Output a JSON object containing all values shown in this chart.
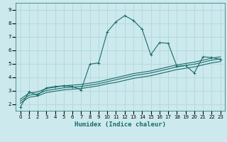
{
  "xlabel": "Humidex (Indice chaleur)",
  "bg_color": "#cce9ed",
  "grid_color": "#aad4d9",
  "line_color": "#1a6b6b",
  "xlim": [
    -0.5,
    23.5
  ],
  "ylim": [
    1.5,
    9.5
  ],
  "xticks": [
    0,
    1,
    2,
    3,
    4,
    5,
    6,
    7,
    8,
    9,
    10,
    11,
    12,
    13,
    14,
    15,
    16,
    17,
    18,
    19,
    20,
    21,
    22,
    23
  ],
  "yticks": [
    2,
    3,
    4,
    5,
    6,
    7,
    8,
    9
  ],
  "line1_x": [
    0,
    1,
    2,
    3,
    4,
    5,
    6,
    7,
    8,
    9,
    10,
    11,
    12,
    13,
    14,
    15,
    16,
    17,
    18,
    19,
    20,
    21,
    22,
    23
  ],
  "line1_y": [
    1.75,
    2.9,
    2.65,
    3.2,
    3.3,
    3.35,
    3.3,
    3.05,
    4.95,
    5.05,
    7.35,
    8.1,
    8.55,
    8.2,
    7.55,
    5.65,
    6.55,
    6.5,
    4.8,
    4.85,
    4.3,
    5.5,
    5.45,
    5.3
  ],
  "line2_x": [
    0,
    1,
    2,
    3,
    4,
    5,
    6,
    7,
    8,
    9,
    10,
    11,
    12,
    13,
    14,
    15,
    16,
    17,
    18,
    19,
    20,
    21,
    22,
    23
  ],
  "line2_y": [
    2.05,
    2.5,
    2.6,
    2.85,
    2.95,
    3.05,
    3.1,
    3.15,
    3.25,
    3.35,
    3.5,
    3.6,
    3.75,
    3.9,
    4.0,
    4.1,
    4.25,
    4.4,
    4.55,
    4.65,
    4.75,
    4.9,
    5.05,
    5.15
  ],
  "line3_x": [
    0,
    1,
    2,
    3,
    4,
    5,
    6,
    7,
    8,
    9,
    10,
    11,
    12,
    13,
    14,
    15,
    16,
    17,
    18,
    19,
    20,
    21,
    22,
    23
  ],
  "line3_y": [
    2.2,
    2.65,
    2.75,
    3.0,
    3.1,
    3.2,
    3.25,
    3.3,
    3.4,
    3.5,
    3.65,
    3.8,
    3.95,
    4.1,
    4.2,
    4.3,
    4.45,
    4.6,
    4.75,
    4.85,
    4.95,
    5.1,
    5.25,
    5.35
  ],
  "line4_x": [
    0,
    1,
    2,
    3,
    4,
    5,
    6,
    7,
    8,
    9,
    10,
    11,
    12,
    13,
    14,
    15,
    16,
    17,
    18,
    19,
    20,
    21,
    22,
    23
  ],
  "line4_y": [
    2.35,
    2.8,
    2.9,
    3.15,
    3.25,
    3.35,
    3.4,
    3.45,
    3.55,
    3.65,
    3.8,
    3.95,
    4.1,
    4.25,
    4.35,
    4.45,
    4.6,
    4.75,
    4.9,
    5.0,
    5.1,
    5.25,
    5.4,
    5.5
  ],
  "linewidth": 0.8,
  "markersize": 2.5,
  "xlabel_fontsize": 6.5,
  "tick_fontsize": 5.0
}
